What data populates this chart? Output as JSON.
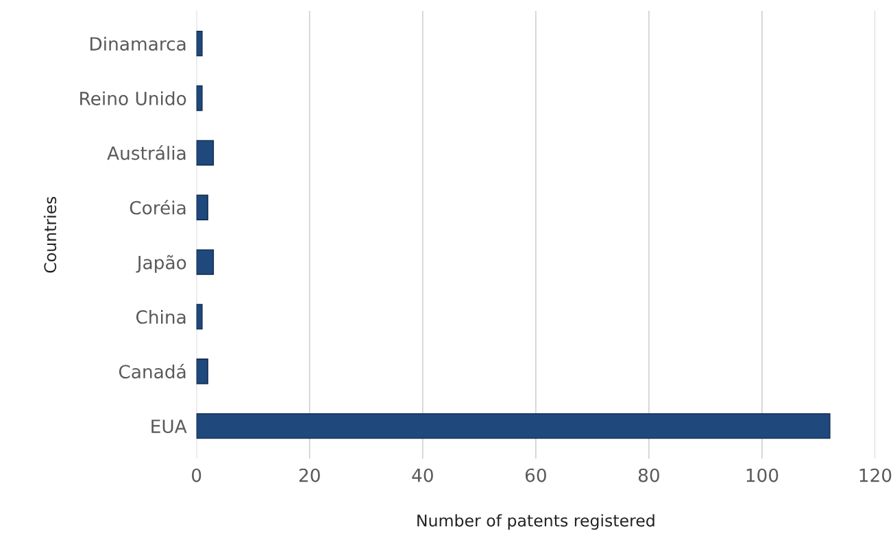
{
  "chart_data": {
    "type": "bar",
    "orientation": "horizontal",
    "xlabel": "Number of patents registered",
    "ylabel": "Countries",
    "categories": [
      "Dinamarca",
      "Reino Unido",
      "Austrália",
      "Coréia",
      "Japão",
      "China",
      "Canadá",
      "EUA"
    ],
    "values": [
      1,
      1,
      3,
      2,
      3,
      1,
      2,
      112
    ],
    "color": "#1f487c",
    "xlim": [
      0,
      120
    ],
    "xticks": [
      0,
      20,
      40,
      60,
      80,
      100,
      120
    ],
    "grid": "x"
  }
}
